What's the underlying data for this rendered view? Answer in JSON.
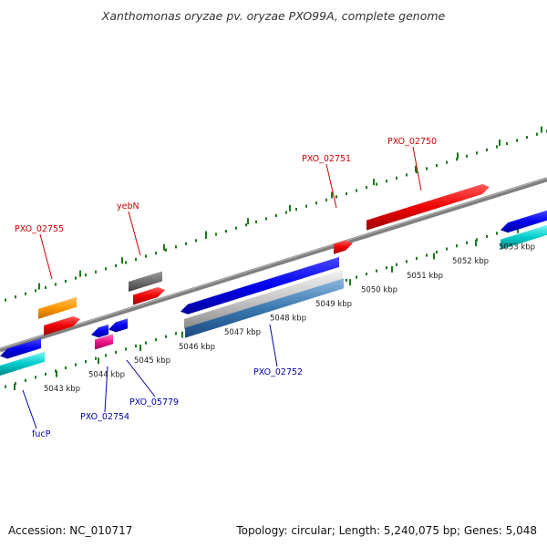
{
  "header": {
    "title": "Xanthomonas oryzae pv. oryzae PXO99A, complete genome"
  },
  "footer": {
    "accession": "Accession: NC_010717",
    "summary": "Topology: circular; Length: 5,240,075 bp; Genes: 5,048"
  },
  "colors": {
    "forward_label": "#cc0000",
    "reverse_label": "#0000aa",
    "ruler": "#1a7a1a",
    "backbone": "#808080"
  },
  "map": {
    "scale_labels": [
      "5043 kbp",
      "5044 kbp",
      "5045 kbp",
      "5046 kbp",
      "5047 kbp",
      "5048 kbp",
      "5049 kbp",
      "5050 kbp",
      "5051 kbp",
      "5052 kbp",
      "5053 kbp"
    ],
    "forward_gene_labels": [
      "PXO_02750",
      "PXO_02751",
      "yebN",
      "PXO_02755"
    ],
    "reverse_gene_labels": [
      "PXO_02752",
      "PXO_05779",
      "PXO_02754",
      "fucP"
    ]
  }
}
